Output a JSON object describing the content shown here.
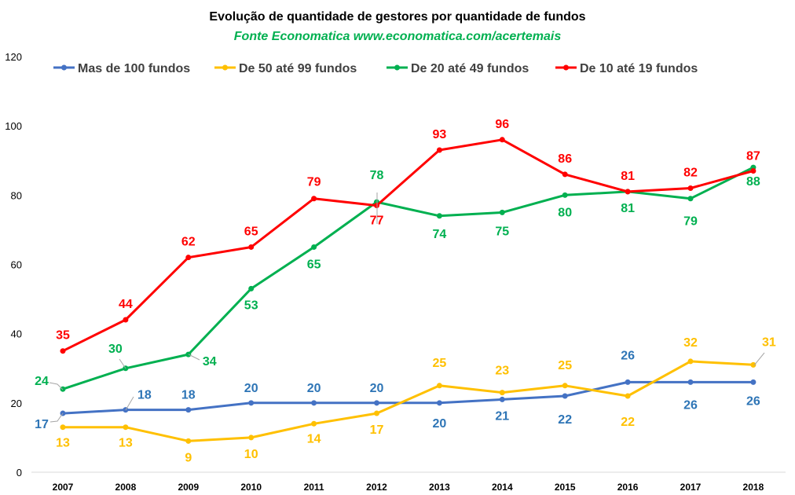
{
  "chart_data": {
    "type": "line",
    "title": "Evolução de quantidade de gestores por quantidade de fundos",
    "subtitle": "Fonte Economatica www.economatica.com/acertemais",
    "subtitle_color": "#00B050",
    "categories": [
      "2007",
      "2008",
      "2009",
      "2010",
      "2011",
      "2012",
      "2013",
      "2014",
      "2015",
      "2016",
      "2017",
      "2018"
    ],
    "ylim": [
      0,
      120
    ],
    "yticks": [
      0,
      20,
      40,
      60,
      80,
      100,
      120
    ],
    "grid": false,
    "legend_position": "top",
    "series": [
      {
        "name": "Mas de 100 fundos",
        "color": "#4472C4",
        "label_color": "#2E75B6",
        "values": [
          17,
          18,
          18,
          20,
          20,
          20,
          20,
          21,
          22,
          26,
          26,
          26
        ],
        "labels": [
          "17",
          "18",
          "18",
          "20",
          "20",
          "20",
          "20",
          "21",
          "22",
          "26",
          "26",
          "26"
        ]
      },
      {
        "name": "De 50 até 99 fundos",
        "color": "#FFC000",
        "label_color": "#FFC000",
        "values": [
          13,
          13,
          9,
          10,
          14,
          17,
          25,
          23,
          25,
          22,
          32,
          31
        ],
        "labels": [
          "13",
          "13",
          "9",
          "10",
          "14",
          "17",
          "25",
          "23",
          "25",
          "22",
          "32",
          "31"
        ]
      },
      {
        "name": "De 20 até 49 fundos",
        "color": "#00B050",
        "label_color": "#00B050",
        "values": [
          24,
          30,
          34,
          53,
          65,
          78,
          74,
          75,
          80,
          81,
          79,
          88
        ],
        "labels": [
          "24",
          "30",
          "34",
          "53",
          "65",
          "78",
          "74",
          "75",
          "80",
          "81",
          "79",
          "88"
        ]
      },
      {
        "name": "De 10 até 19  fundos",
        "color": "#FF0000",
        "label_color": "#FF0000",
        "values": [
          35,
          44,
          62,
          65,
          79,
          77,
          93,
          96,
          86,
          81,
          82,
          87
        ],
        "labels": [
          "35",
          "44",
          "62",
          "65",
          "79",
          "77",
          "93",
          "96",
          "86",
          "81",
          "82",
          "87"
        ]
      }
    ]
  }
}
